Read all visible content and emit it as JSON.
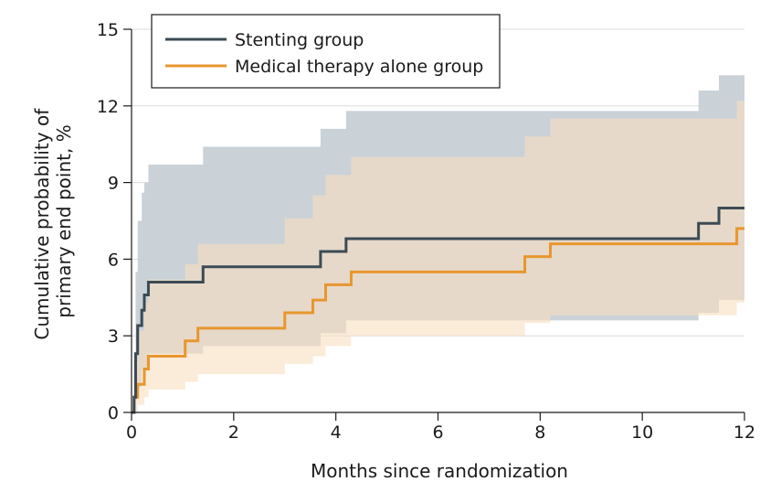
{
  "chart_data": {
    "type": "line",
    "xlabel": "Months since randomization",
    "ylabel_lines": [
      "Cumulative probability of",
      "primary end point, %"
    ],
    "xlim": [
      0,
      12
    ],
    "ylim": [
      0,
      15
    ],
    "x_ticks": [
      0,
      2,
      4,
      6,
      8,
      10,
      12
    ],
    "y_ticks": [
      0,
      3,
      6,
      9,
      12,
      15
    ],
    "grid": "horizontal",
    "legend_position": "top-left",
    "series": [
      {
        "name": "Stenting group",
        "color": "#3b4b55",
        "band_color": "#c4cdd4",
        "steps": [
          [
            0,
            0
          ],
          [
            0.05,
            0.6
          ],
          [
            0.08,
            2.3
          ],
          [
            0.12,
            3.4
          ],
          [
            0.2,
            4.0
          ],
          [
            0.25,
            4.6
          ],
          [
            0.33,
            5.1
          ],
          [
            1.4,
            5.7
          ],
          [
            3.7,
            6.3
          ],
          [
            4.2,
            6.8
          ],
          [
            11.1,
            7.4
          ],
          [
            11.5,
            8.0
          ],
          [
            12,
            8.0
          ]
        ],
        "ci_lower": [
          [
            0,
            0
          ],
          [
            0.08,
            0.5
          ],
          [
            0.12,
            1.0
          ],
          [
            0.2,
            1.7
          ],
          [
            0.33,
            2.3
          ],
          [
            1.4,
            2.6
          ],
          [
            3.7,
            3.1
          ],
          [
            4.2,
            3.6
          ],
          [
            11.1,
            3.9
          ],
          [
            11.5,
            4.4
          ],
          [
            12,
            4.4
          ]
        ],
        "ci_upper": [
          [
            0,
            0
          ],
          [
            0.05,
            2.0
          ],
          [
            0.08,
            5.5
          ],
          [
            0.12,
            7.5
          ],
          [
            0.2,
            8.6
          ],
          [
            0.25,
            9.0
          ],
          [
            0.33,
            9.7
          ],
          [
            1.4,
            10.4
          ],
          [
            3.7,
            11.1
          ],
          [
            4.2,
            11.8
          ],
          [
            11.1,
            12.6
          ],
          [
            11.5,
            13.2
          ],
          [
            12,
            13.2
          ]
        ]
      },
      {
        "name": "Medical therapy alone group",
        "color": "#e8962f",
        "band_color": "#f8ddbf",
        "steps": [
          [
            0,
            0
          ],
          [
            0.05,
            0.6
          ],
          [
            0.12,
            1.1
          ],
          [
            0.25,
            1.7
          ],
          [
            0.33,
            2.2
          ],
          [
            1.05,
            2.8
          ],
          [
            1.3,
            3.3
          ],
          [
            3.0,
            3.9
          ],
          [
            3.55,
            4.4
          ],
          [
            3.8,
            5.0
          ],
          [
            4.3,
            5.5
          ],
          [
            7.7,
            6.1
          ],
          [
            8.2,
            6.6
          ],
          [
            11.85,
            7.2
          ],
          [
            12,
            7.2
          ]
        ],
        "ci_lower": [
          [
            0,
            0
          ],
          [
            0.12,
            0.3
          ],
          [
            0.25,
            0.6
          ],
          [
            0.33,
            0.9
          ],
          [
            1.05,
            1.2
          ],
          [
            1.3,
            1.5
          ],
          [
            3.0,
            1.9
          ],
          [
            3.55,
            2.2
          ],
          [
            3.8,
            2.6
          ],
          [
            4.3,
            3.0
          ],
          [
            7.7,
            3.5
          ],
          [
            8.2,
            3.8
          ],
          [
            11.85,
            4.3
          ],
          [
            12,
            4.3
          ]
        ],
        "ci_upper": [
          [
            0,
            0
          ],
          [
            0.05,
            2.0
          ],
          [
            0.12,
            3.2
          ],
          [
            0.25,
            4.3
          ],
          [
            0.33,
            5.2
          ],
          [
            1.05,
            5.8
          ],
          [
            1.3,
            6.6
          ],
          [
            3.0,
            7.6
          ],
          [
            3.55,
            8.5
          ],
          [
            3.8,
            9.3
          ],
          [
            4.3,
            10.0
          ],
          [
            7.7,
            10.8
          ],
          [
            8.2,
            11.5
          ],
          [
            11.85,
            12.2
          ],
          [
            12,
            12.2
          ]
        ]
      }
    ]
  }
}
